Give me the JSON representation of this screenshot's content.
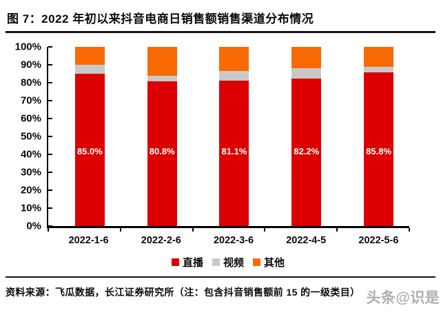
{
  "figure": {
    "title": "图 7：2022 年初以来抖音电商日销售额销售渠道分布情况"
  },
  "chart_data": {
    "type": "bar",
    "stacked": true,
    "orientation": "vertical",
    "title": "2022 年初以来抖音电商日销售额销售渠道分布情况",
    "categories": [
      "2022-1-6",
      "2022-2-6",
      "2022-3-6",
      "2022-4-5",
      "2022-5-6"
    ],
    "series": [
      {
        "name": "直播",
        "color": "#dc0000",
        "values": [
          85.0,
          80.8,
          81.1,
          82.2,
          85.8
        ]
      },
      {
        "name": "视频",
        "color": "#c9c9c9",
        "values": [
          4.9,
          3.0,
          5.3,
          6.0,
          3.1
        ]
      },
      {
        "name": "其他",
        "color": "#f96a05",
        "values": [
          10.1,
          16.2,
          13.6,
          11.8,
          11.1
        ]
      }
    ],
    "bar_value_labels": [
      "85.0%",
      "80.8%",
      "81.1%",
      "82.2%",
      "85.8%"
    ],
    "bar_value_label_series": "直播",
    "y_ticks": [
      "0%",
      "10%",
      "20%",
      "30%",
      "40%",
      "50%",
      "60%",
      "70%",
      "80%",
      "90%",
      "100%"
    ],
    "ylim": [
      0,
      100
    ],
    "xlabel": "",
    "ylabel": "",
    "grid": false,
    "legend_position": "bottom",
    "legend": [
      "直播",
      "视频",
      "其他"
    ]
  },
  "footer": {
    "source": "资料来源：飞瓜数据，长江证券研究所（注：包含抖音销售额前 15 的一级类目）",
    "watermark": "头条@识是"
  }
}
